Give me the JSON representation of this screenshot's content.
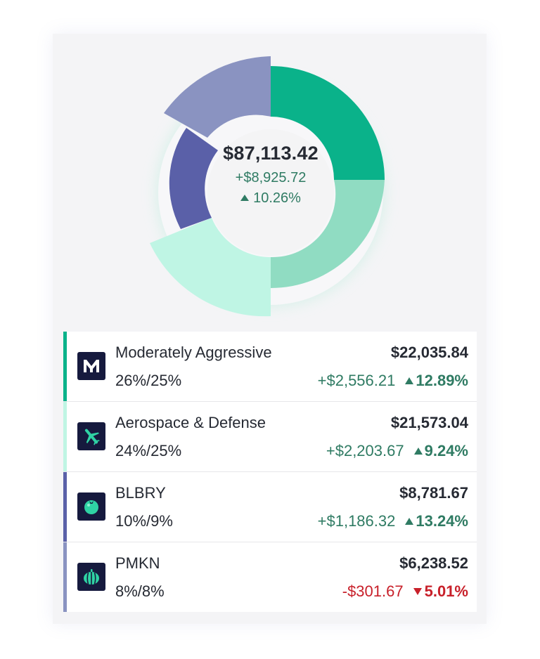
{
  "summary": {
    "total": "$87,113.42",
    "change": "+$8,925.72",
    "change_pct": "10.26%"
  },
  "colors": {
    "green_dark": "#0ab28a",
    "green_mid": "#90dcc2",
    "green_light": "#bff5e4",
    "indigo": "#5a60a8",
    "lavender": "#8a93c1",
    "positive": "#2f7b63",
    "negative": "#c8202a"
  },
  "chart_data": {
    "type": "pie",
    "slices": [
      {
        "name": "Moderately Aggressive",
        "percent": 26,
        "color": "#0ab28a"
      },
      {
        "name": "Aerospace & Defense",
        "percent": 24,
        "color": "#bff5e4"
      },
      {
        "name": "BLBRY",
        "percent": 10,
        "color": "#5a60a8"
      },
      {
        "name": "PMKN",
        "percent": 8,
        "color": "#8a93c1"
      }
    ]
  },
  "holdings": [
    {
      "name": "Moderately Aggressive",
      "allocation": "26%/25%",
      "value": "$22,035.84",
      "change": "+$2,556.21",
      "change_pct": "12.89%",
      "direction": "up",
      "icon": "m-logo-icon",
      "bar_color": "#0ab28a"
    },
    {
      "name": "Aerospace & Defense",
      "allocation": "24%/25%",
      "value": "$21,573.04",
      "change": "+$2,203.67",
      "change_pct": "9.24%",
      "direction": "up",
      "icon": "airplane-icon",
      "bar_color": "#bff5e4"
    },
    {
      "name": "BLBRY",
      "allocation": "10%/9%",
      "value": "$8,781.67",
      "change": "+$1,186.32",
      "change_pct": "13.24%",
      "direction": "up",
      "icon": "blueberry-icon",
      "bar_color": "#5a60a8"
    },
    {
      "name": "PMKN",
      "allocation": "8%/8%",
      "value": "$6,238.52",
      "change": "-$301.67",
      "change_pct": "5.01%",
      "direction": "down",
      "icon": "pumpkin-icon",
      "bar_color": "#8a93c1"
    }
  ]
}
